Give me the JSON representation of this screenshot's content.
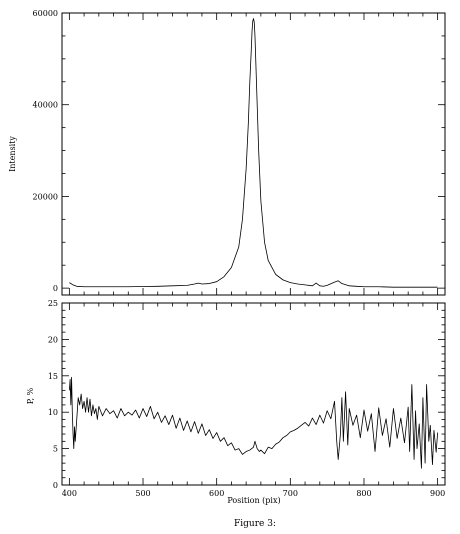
{
  "caption": "Figure 3:",
  "chart_data": [
    {
      "type": "line",
      "title": "",
      "xlabel": "",
      "ylabel": "Intensity",
      "xlim": [
        390,
        910
      ],
      "ylim": [
        -1500,
        60000
      ],
      "xticks": [
        400,
        500,
        600,
        700,
        800,
        900
      ],
      "yticks": [
        0,
        20000,
        40000,
        60000
      ],
      "ytick_labels": [
        "0",
        "20000",
        "40000",
        "60000"
      ],
      "grid": false,
      "series": [
        {
          "x": [
            400,
            405,
            410,
            420,
            440,
            460,
            480,
            500,
            520,
            540,
            560,
            570,
            575,
            580,
            590,
            600,
            610,
            620,
            630,
            635,
            640,
            643,
            645,
            647,
            648,
            649,
            650,
            651,
            652,
            653,
            655,
            657,
            660,
            665,
            670,
            680,
            690,
            700,
            710,
            720,
            730,
            735,
            740,
            745,
            750,
            760,
            765,
            770,
            780,
            790,
            800,
            820,
            840,
            860,
            880,
            900
          ],
          "y": [
            1200,
            700,
            400,
            300,
            300,
            300,
            300,
            350,
            400,
            500,
            600,
            900,
            1100,
            900,
            1000,
            1400,
            2500,
            4500,
            9000,
            15000,
            26000,
            36000,
            45000,
            52000,
            56000,
            58200,
            58800,
            58000,
            55000,
            50000,
            40000,
            30000,
            19000,
            10000,
            6000,
            3000,
            1800,
            1200,
            900,
            700,
            500,
            1100,
            500,
            400,
            600,
            1300,
            1600,
            1000,
            500,
            400,
            300,
            300,
            200,
            200,
            200,
            200
          ]
        }
      ]
    },
    {
      "type": "line",
      "title": "",
      "xlabel": "Position  (pix)",
      "ylabel": "P, %",
      "xlim": [
        390,
        910
      ],
      "ylim": [
        0,
        25
      ],
      "xticks": [
        400,
        500,
        600,
        700,
        800,
        900
      ],
      "xtick_labels": [
        "400",
        "500",
        "600",
        "700",
        "800",
        "900"
      ],
      "yticks": [
        0,
        5,
        10,
        15,
        20,
        25
      ],
      "ytick_labels": [
        "0",
        "5",
        "10",
        "15",
        "20",
        "25"
      ],
      "grid": false,
      "series": [
        {
          "x": [
            400,
            401,
            402,
            403,
            404,
            405,
            406,
            407,
            408,
            410,
            412,
            414,
            416,
            418,
            420,
            422,
            424,
            426,
            428,
            430,
            432,
            434,
            436,
            438,
            440,
            445,
            450,
            455,
            460,
            465,
            470,
            475,
            480,
            485,
            490,
            495,
            500,
            505,
            510,
            515,
            520,
            525,
            530,
            535,
            540,
            545,
            550,
            555,
            560,
            565,
            570,
            575,
            580,
            585,
            590,
            595,
            600,
            605,
            610,
            615,
            620,
            625,
            630,
            635,
            640,
            645,
            650,
            652,
            655,
            658,
            660,
            665,
            670,
            675,
            680,
            685,
            690,
            695,
            700,
            705,
            710,
            715,
            720,
            725,
            730,
            735,
            740,
            745,
            750,
            755,
            760,
            763,
            765,
            768,
            770,
            772,
            775,
            778,
            780,
            785,
            790,
            795,
            800,
            805,
            810,
            815,
            820,
            825,
            830,
            835,
            840,
            845,
            850,
            855,
            860,
            862,
            865,
            868,
            870,
            872,
            875,
            878,
            880,
            883,
            885,
            888,
            890,
            893,
            895,
            898,
            900
          ],
          "y": [
            13,
            14.5,
            11,
            14.8,
            10,
            7,
            5,
            8,
            6,
            9,
            12,
            11,
            12.5,
            10.5,
            11.5,
            10,
            12,
            10,
            11.8,
            9.5,
            11,
            9.8,
            10.5,
            9,
            10.8,
            9.5,
            10.5,
            9.8,
            10.2,
            9.2,
            10.5,
            9.5,
            10,
            9.6,
            10.3,
            9.2,
            10.5,
            9.4,
            10.8,
            9.1,
            10,
            8.6,
            9.5,
            8.3,
            9.6,
            7.8,
            9.2,
            7.5,
            8.8,
            7.3,
            8.7,
            7.1,
            8.4,
            6.8,
            7.6,
            6.4,
            7.2,
            6,
            6.5,
            5.4,
            5.8,
            4.8,
            5,
            4.2,
            4.6,
            4.8,
            5.2,
            6,
            5,
            4.6,
            4.8,
            4.3,
            5.2,
            5,
            5.6,
            5.9,
            6.5,
            6.8,
            7.3,
            7.5,
            7.8,
            8.2,
            8.6,
            8.1,
            9.2,
            8.3,
            9.6,
            8.5,
            10.2,
            9.1,
            11.5,
            6,
            3.5,
            7,
            12,
            6,
            12.8,
            5.5,
            10.5,
            8.2,
            9.6,
            6.5,
            10.3,
            7.4,
            9.8,
            4.6,
            10.6,
            6.8,
            9.1,
            5.2,
            10.5,
            6.4,
            9.2,
            5.8,
            10.7,
            4.6,
            13.8,
            3.5,
            10.2,
            5,
            8.4,
            2.3,
            12,
            3,
            13.8,
            6,
            8.2,
            2.8,
            7.5,
            4.5,
            7.2
          ]
        }
      ]
    }
  ]
}
